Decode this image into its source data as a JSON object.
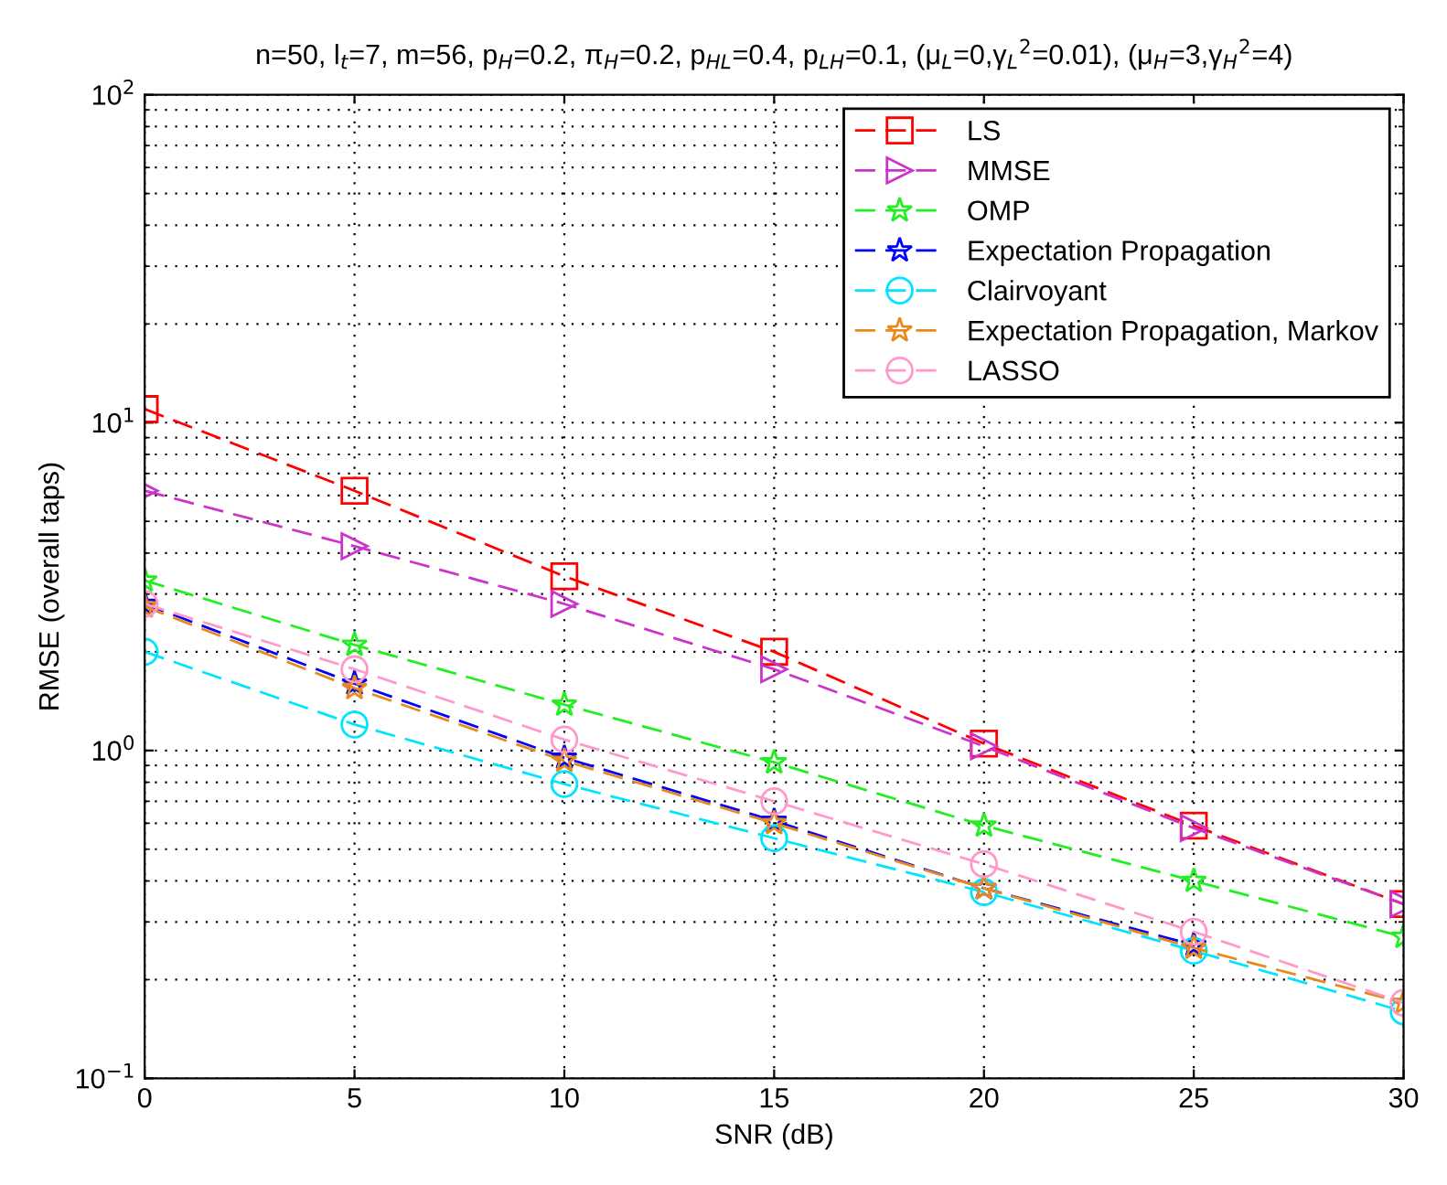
{
  "chart_data": {
    "type": "line",
    "title": "n=50, l$_{t}$=7, m=56, p$_{H}$=0.2, π$_{H}$=0.2, p$_{HL}$=0.4, p$_{LH}$=0.1, (μ$_{L}$=0,γ$_{L}$$^{2}$=0.01), (μ$_{H}$=3,γ$_{H}$$^{2}$=4)",
    "xlabel": "SNR (dB)",
    "ylabel": "RMSE (overall taps)",
    "x": [
      0,
      5,
      10,
      15,
      20,
      25,
      30
    ],
    "series": [
      {
        "name": "LS",
        "color": "#ff0000",
        "marker": "square",
        "values": [
          11.0,
          6.2,
          3.4,
          2.0,
          1.05,
          0.59,
          0.34
        ]
      },
      {
        "name": "MMSE",
        "color": "#cc33cc",
        "marker": "triangle",
        "values": [
          6.2,
          4.2,
          2.8,
          1.77,
          1.03,
          0.58,
          0.34
        ]
      },
      {
        "name": "OMP",
        "color": "#22ee22",
        "marker": "star",
        "values": [
          3.3,
          2.1,
          1.38,
          0.92,
          0.59,
          0.4,
          0.27
        ]
      },
      {
        "name": "Expectation Propagation",
        "color": "#0000ff",
        "marker": "star",
        "values": [
          2.8,
          1.6,
          0.95,
          0.61,
          0.38,
          0.255,
          null
        ]
      },
      {
        "name": "Clairvoyant",
        "color": "#00e5ff",
        "marker": "circle",
        "values": [
          2.0,
          1.2,
          0.79,
          0.54,
          0.37,
          0.245,
          0.16
        ]
      },
      {
        "name": "Expectation Propagation, Markov",
        "color": "#e8891c",
        "marker": "star",
        "values": [
          2.75,
          1.55,
          0.93,
          0.6,
          0.38,
          0.25,
          0.17
        ]
      },
      {
        "name": "LASSO",
        "color": "#ff99cc",
        "marker": "circle",
        "values": [
          2.8,
          1.77,
          1.08,
          0.7,
          0.45,
          0.28,
          0.17
        ]
      }
    ],
    "line_style": "dashed",
    "log": "y",
    "grid": true,
    "legend": "top right",
    "xlim": [
      0,
      30
    ],
    "xticks": [
      0,
      5,
      10,
      15,
      20,
      25,
      30
    ],
    "ylim": [
      0.1,
      100
    ],
    "yticks": [
      {
        "value": 0.1,
        "label": "10$^{−1}$"
      },
      {
        "value": 1,
        "label": "10$^{0}$"
      },
      {
        "value": 10,
        "label": "10$^{1}$"
      },
      {
        "value": 100,
        "label": "10$^{2}$"
      }
    ]
  }
}
